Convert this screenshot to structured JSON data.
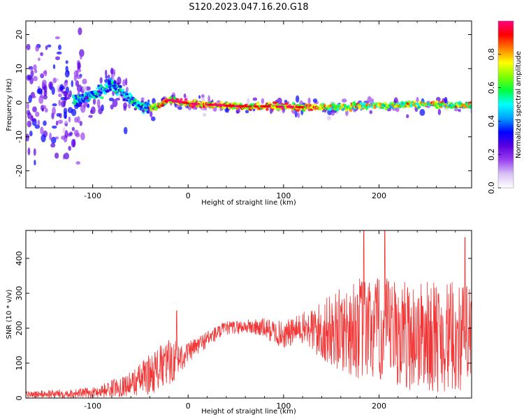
{
  "title": "S120.2023.047.16.20.G18",
  "chart_data": [
    {
      "type": "heatmap",
      "xlabel": "Height of straight line (km)",
      "ylabel": "Frequency (Hz)",
      "xlim": [
        -170,
        297
      ],
      "ylim": [
        -25,
        24
      ],
      "x_ticks": [
        -100,
        0,
        100,
        200
      ],
      "y_ticks": [
        -20,
        -10,
        0,
        10,
        20
      ],
      "colorbar": {
        "label": "Normalized spectral amplitude",
        "range": [
          0.0,
          1.0
        ],
        "ticks": [
          "0.0",
          "0.2",
          "0.4",
          "0.6",
          "0.8"
        ],
        "colors": [
          "#ffffff",
          "#d9c2f5",
          "#9a40f0",
          "#5a00e0",
          "#0000ff",
          "#00a0ff",
          "#00ffff",
          "#00ff40",
          "#80ff00",
          "#ffff00",
          "#ff8000",
          "#ff0000",
          "#ff0080"
        ]
      },
      "ridge": [
        {
          "x": -110,
          "y": 1.0
        },
        {
          "x": -90,
          "y": 3.5
        },
        {
          "x": -80,
          "y": 5.5
        },
        {
          "x": -65,
          "y": 2.0
        },
        {
          "x": -50,
          "y": -1.0
        },
        {
          "x": -35,
          "y": -1.5
        },
        {
          "x": -20,
          "y": 0.8
        },
        {
          "x": 0,
          "y": -0.2
        },
        {
          "x": 50,
          "y": -1.0
        },
        {
          "x": 100,
          "y": -1.2
        },
        {
          "x": 150,
          "y": -1.5
        },
        {
          "x": 200,
          "y": -0.8
        },
        {
          "x": 250,
          "y": -0.5
        },
        {
          "x": 297,
          "y": -0.8
        }
      ]
    },
    {
      "type": "line",
      "xlabel": "Height of straight line (km)",
      "ylabel": "SNR (10 * v/v)",
      "xlim": [
        -170,
        297
      ],
      "ylim": [
        0,
        480
      ],
      "x_ticks": [
        -100,
        0,
        100,
        200
      ],
      "y_ticks": [
        0,
        100,
        200,
        300,
        400
      ],
      "color": "#ff0000",
      "envelope": [
        {
          "x": -170,
          "mean": 10,
          "amp": 10
        },
        {
          "x": -100,
          "mean": 15,
          "amp": 15
        },
        {
          "x": -60,
          "mean": 40,
          "amp": 35
        },
        {
          "x": -40,
          "mean": 70,
          "amp": 60
        },
        {
          "x": -20,
          "mean": 100,
          "amp": 70
        },
        {
          "x": 0,
          "mean": 130,
          "amp": 30
        },
        {
          "x": 20,
          "mean": 170,
          "amp": 25
        },
        {
          "x": 40,
          "mean": 200,
          "amp": 20
        },
        {
          "x": 60,
          "mean": 205,
          "amp": 20
        },
        {
          "x": 80,
          "mean": 200,
          "amp": 30
        },
        {
          "x": 100,
          "mean": 180,
          "amp": 40
        },
        {
          "x": 120,
          "mean": 200,
          "amp": 45
        },
        {
          "x": 140,
          "mean": 190,
          "amp": 90
        },
        {
          "x": 180,
          "mean": 200,
          "amp": 150
        },
        {
          "x": 230,
          "mean": 180,
          "amp": 160
        },
        {
          "x": 297,
          "mean": 170,
          "amp": 160
        }
      ],
      "spikes": [
        {
          "x": -12,
          "y": 250
        },
        {
          "x": 184,
          "y": 480
        },
        {
          "x": 206,
          "y": 480
        },
        {
          "x": 290,
          "y": 460
        }
      ]
    }
  ]
}
